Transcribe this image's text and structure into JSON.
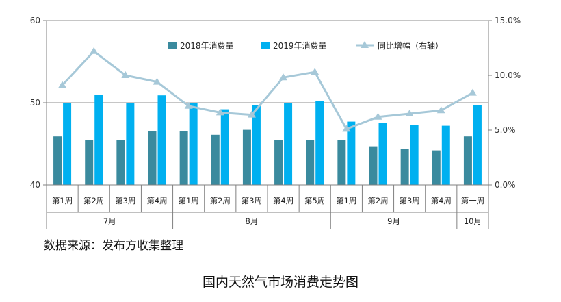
{
  "chart_data": {
    "type": "bar",
    "title": "国内天然气市场消费走势图",
    "categories": [
      "第1周",
      "第2周",
      "第3周",
      "第4周",
      "第1周",
      "第2周",
      "第3周",
      "第4周",
      "第5周",
      "第1周",
      "第2周",
      "第3周",
      "第4周",
      "第一周"
    ],
    "groups": [
      {
        "label": "7月",
        "count": 4
      },
      {
        "label": "8月",
        "count": 5
      },
      {
        "label": "9月",
        "count": 4
      },
      {
        "label": "10月",
        "count": 1
      }
    ],
    "series": [
      {
        "name": "2018年消费量",
        "type": "bar",
        "axis": "left",
        "color": "#3a8a9e",
        "values": [
          45.9,
          45.5,
          45.5,
          46.5,
          46.5,
          46.1,
          46.7,
          45.5,
          45.5,
          45.5,
          44.7,
          44.4,
          44.2,
          45.9
        ]
      },
      {
        "name": "2019年消费量",
        "type": "bar",
        "axis": "left",
        "color": "#00b0f0",
        "values": [
          50.0,
          51.0,
          50.0,
          50.9,
          50.0,
          49.2,
          49.7,
          50.0,
          50.2,
          47.7,
          47.5,
          47.3,
          47.2,
          49.7
        ]
      },
      {
        "name": "同比增幅（右轴）",
        "type": "line",
        "axis": "right",
        "color": "#a6c8d8",
        "values": [
          9.1,
          12.2,
          10.0,
          9.4,
          7.2,
          6.6,
          6.4,
          9.8,
          10.3,
          5.1,
          6.2,
          6.5,
          6.8,
          8.4
        ]
      }
    ],
    "y_left": {
      "min": 40,
      "max": 60,
      "ticks": [
        "40",
        "50",
        "60"
      ]
    },
    "y_right": {
      "min": 0,
      "max": 15,
      "ticks": [
        "0.0%",
        "5.0%",
        "10.0%",
        "15.0%"
      ]
    },
    "legend_position": "top",
    "gridlines": "major horizontal (left axis)"
  },
  "source_note": "数据来源：发布方收集整理"
}
